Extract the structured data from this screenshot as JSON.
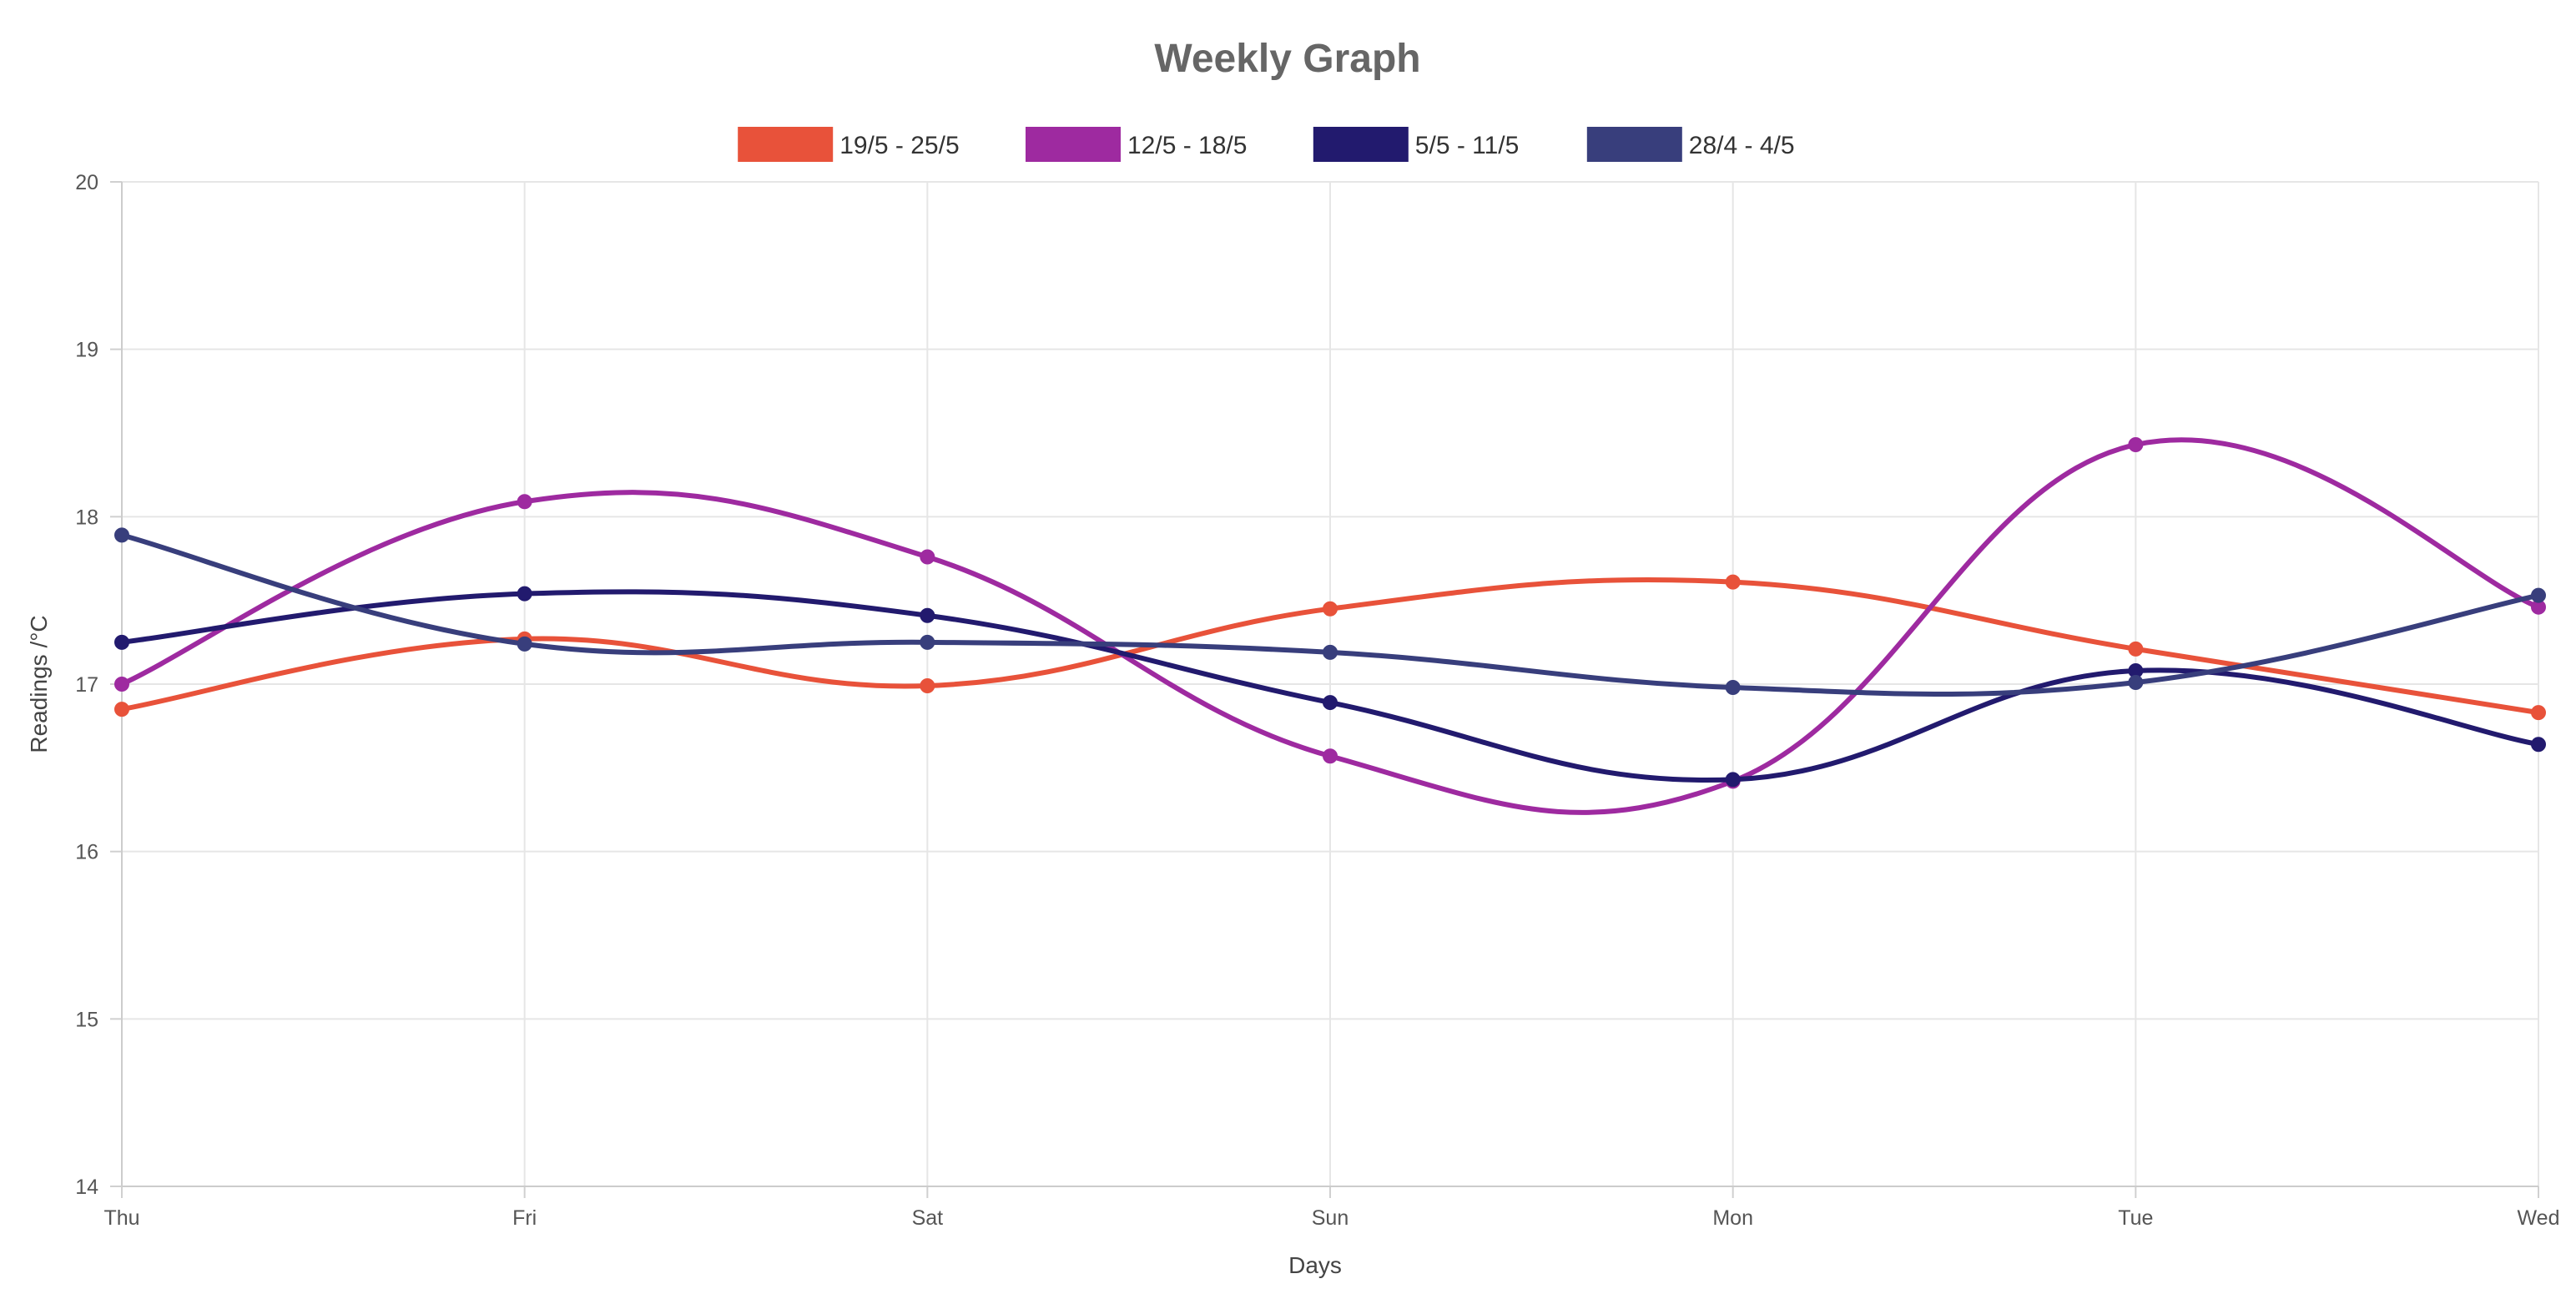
{
  "chart_data": {
    "type": "line",
    "title": "Weekly Graph",
    "xlabel": "Days",
    "ylabel": "Readings /°C",
    "categories": [
      "Thu",
      "Fri",
      "Sat",
      "Sun",
      "Mon",
      "Tue",
      "Wed"
    ],
    "ylim": [
      14,
      20
    ],
    "yticks": [
      "14",
      "15",
      "16",
      "17",
      "18",
      "19",
      "20"
    ],
    "grid": true,
    "legend_position": "top",
    "series": [
      {
        "name": "19/5 - 25/5",
        "color": "#e8523a",
        "values": [
          16.85,
          17.27,
          16.99,
          17.45,
          17.61,
          17.21,
          16.83
        ]
      },
      {
        "name": "12/5 - 18/5",
        "color": "#9e2aa0",
        "values": [
          17.0,
          18.09,
          17.76,
          16.57,
          16.42,
          18.43,
          17.46
        ]
      },
      {
        "name": "5/5 - 11/5",
        "color": "#221a6e",
        "values": [
          17.25,
          17.54,
          17.41,
          16.89,
          16.43,
          17.08,
          16.64
        ]
      },
      {
        "name": "28/4 - 4/5",
        "color": "#383e7c",
        "values": [
          17.89,
          17.24,
          17.25,
          17.19,
          16.98,
          17.01,
          17.53
        ]
      }
    ]
  }
}
